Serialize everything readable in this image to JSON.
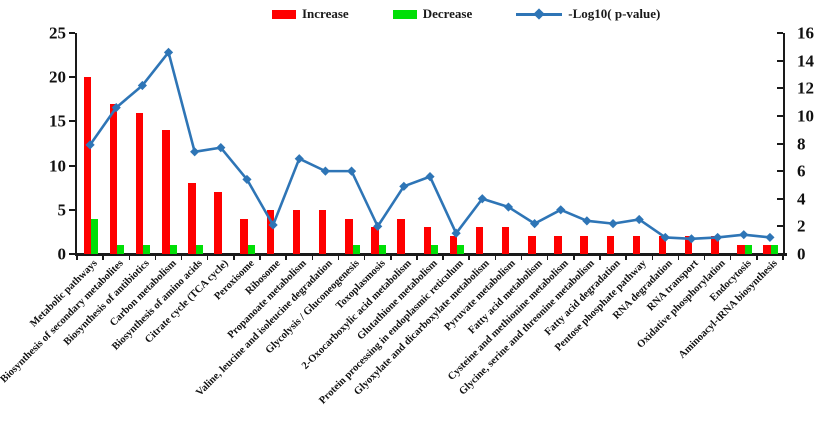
{
  "legend": {
    "increase_label": "Increase",
    "decrease_label": "Decrease",
    "pvalue_label": "-Log10( p-value)"
  },
  "colors": {
    "increase": "#FE0000",
    "decrease": "#00DF06",
    "pvalue_line": "#2E75B6",
    "axis": "#1a1a1a"
  },
  "chart_data": {
    "type": "bar",
    "subtype": "grouped bars with secondary-axis line overlay",
    "title": "",
    "xlabel": "",
    "ylabel_left": "",
    "ylabel_right": "",
    "grid": false,
    "legend_position": "top-center",
    "categories": [
      "Metabolic pathways",
      "Biosynthesis of secondary metabolites",
      "Biosynthesis of antibiotics",
      "Carbon metabolism",
      "Biosynthesis of amino acids",
      "Citrate cycle (TCA cycle)",
      "Peroxisome",
      "Ribosome",
      "Propanoate metabolism",
      "Valine, leucine and isoleucine degradation",
      "Glycolysis / Gluconeogenesis",
      "Toxoplasmosis",
      "2-Oxocarboxylic acid metabolism",
      "Glutathione metabolism",
      "Protein processing in endoplasmic reticulum",
      "Glyoxylate and dicarboxylate metabolism",
      "Pyruvate metabolism",
      "Fatty acid metabolism",
      "Cysteine and methionine metabolism",
      "Glycine, serine and threonine metabolism",
      "Fatty acid degradation",
      "Pentose phosphate pathway",
      "RNA degradation",
      "RNA transport",
      "Oxidative phosphorylation",
      "Endocytosis",
      "Aminoacyl-tRNA biosynthesis"
    ],
    "series": [
      {
        "name": "Increase",
        "type": "bar",
        "axis": "left",
        "color": "#FE0000",
        "values": [
          20,
          17,
          16,
          14,
          8,
          7,
          4,
          5,
          5,
          5,
          4,
          3,
          4,
          3,
          2,
          3,
          3,
          2,
          2,
          2,
          2,
          2,
          2,
          2,
          2,
          1,
          1
        ]
      },
      {
        "name": "Decrease",
        "type": "bar",
        "axis": "left",
        "color": "#00DF06",
        "values": [
          4,
          1,
          1,
          1,
          1,
          0,
          1,
          0,
          0,
          0,
          1,
          1,
          0,
          1,
          1,
          0,
          0,
          0,
          0,
          0,
          0,
          0,
          0,
          0,
          0,
          1,
          1
        ]
      },
      {
        "name": "-Log10( p-value)",
        "type": "line",
        "axis": "right",
        "color": "#2E75B6",
        "values": [
          7.9,
          10.6,
          12.2,
          14.6,
          7.4,
          7.7,
          5.4,
          2.1,
          6.9,
          6.0,
          6.0,
          2.0,
          4.9,
          5.6,
          1.5,
          4.0,
          3.4,
          2.2,
          3.2,
          2.4,
          2.2,
          2.5,
          1.2,
          1.1,
          1.2,
          1.4,
          1.2
        ]
      }
    ],
    "left_axis": {
      "range": [
        0,
        25
      ],
      "ticks": [
        0,
        5,
        10,
        15,
        20,
        25
      ]
    },
    "right_axis": {
      "range": [
        0,
        16
      ],
      "ticks": [
        0,
        2,
        4,
        6,
        8,
        10,
        12,
        14,
        16
      ]
    }
  }
}
